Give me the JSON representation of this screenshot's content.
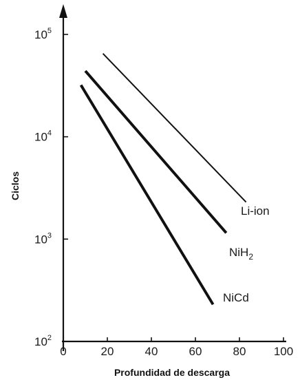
{
  "chart_data": {
    "type": "line",
    "title": "",
    "xlabel": "Profundidad de descarga",
    "ylabel": "Ciclos",
    "xlim": [
      0,
      100
    ],
    "ylim": [
      100,
      100000
    ],
    "y_scale": "log",
    "grid": false,
    "x_ticks": [
      {
        "value": 0,
        "label": "0"
      },
      {
        "value": 20,
        "label": "20"
      },
      {
        "value": 40,
        "label": "40"
      },
      {
        "value": 60,
        "label": "60"
      },
      {
        "value": 80,
        "label": "80"
      },
      {
        "value": 100,
        "label": "100"
      }
    ],
    "y_ticks": [
      {
        "value": 100,
        "base": "10",
        "exp": "2"
      },
      {
        "value": 1000,
        "base": "10",
        "exp": "3"
      },
      {
        "value": 10000,
        "base": "10",
        "exp": "4"
      },
      {
        "value": 100000,
        "base": "10",
        "exp": "5"
      }
    ],
    "series": [
      {
        "name": "Li-ion",
        "label_main": "Li-ion",
        "label_sub": "",
        "x": [
          18,
          83
        ],
        "y": [
          65000,
          2300
        ],
        "stroke_width": 2
      },
      {
        "name": "NiH2",
        "label_main": "NiH",
        "label_sub": "2",
        "x": [
          10,
          74
        ],
        "y": [
          44000,
          1150
        ],
        "stroke_width": 4
      },
      {
        "name": "NiCd",
        "label_main": "NiCd",
        "label_sub": "",
        "x": [
          8,
          68
        ],
        "y": [
          32000,
          230
        ],
        "stroke_width": 4
      }
    ]
  }
}
